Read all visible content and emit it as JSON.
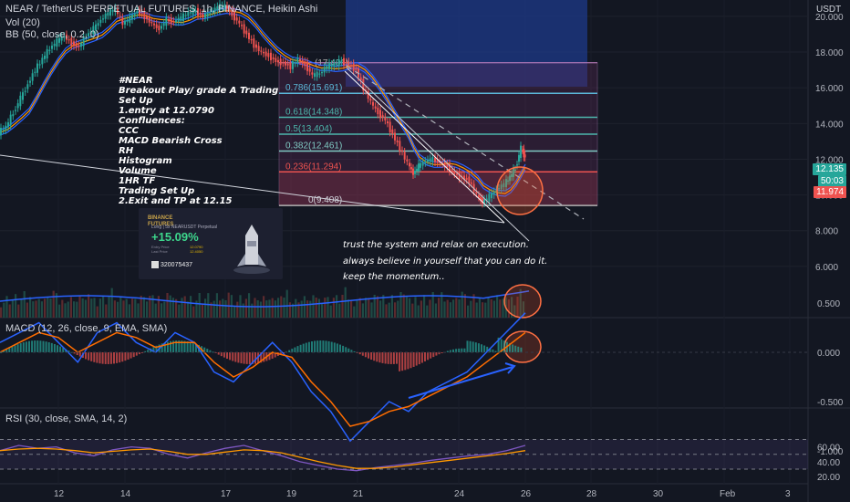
{
  "header": {
    "title": "NEAR / TetherUS PERPETUAL FUTURES, 1h, BINANCE, Heikin Ashi",
    "vol": "Vol (20)",
    "bb": "BB (50, close, 0.2, 0)",
    "currency": "USDT"
  },
  "price_badges": {
    "last": "12.135",
    "countdown": "50:03",
    "open": "11.974",
    "last_color": "#26a69a",
    "open_color": "#ef5350"
  },
  "note_lines": [
    "#NEAR",
    "Breakout Play/ grade A Trading",
    "Set Up",
    "1.entry at 12.0790",
    "Confluences:",
    "CCC",
    "MACD Bearish Cross",
    "RH",
    "Histogram",
    "Volume",
    "1HR TF",
    "Trading Set Up",
    "2.Exit and TP at 12.15"
  ],
  "comments": [
    "trust the system and relax on execution.",
    "always believe in yourself that you can do it.",
    "keep the momentum.."
  ],
  "card": {
    "brand_top": "BINANCE",
    "brand_bottom": "FUTURES",
    "pair": "Long | 5x   NEARUSDT Perpetual",
    "pct": "+15.09%",
    "row1": "Entry Price",
    "row2": "Last Price",
    "val1": "12.0790",
    "val2": "12.4050",
    "ref": "320075437"
  },
  "chart_data": [
    {
      "type": "candlestick",
      "title": "NEAR / TetherUS PERPETUAL FUTURES, 1h, BINANCE, Heikin Ashi",
      "y_ticks": [
        20.0,
        18.0,
        16.0,
        14.0,
        12.0,
        10.0,
        8.0,
        6.0
      ],
      "x_ticks": [
        "12",
        "14",
        "17",
        "19",
        "21",
        "24",
        "26",
        "28",
        "30",
        "Feb",
        "3"
      ],
      "fib_levels": [
        {
          "ratio": 0.786,
          "label": "0.786(15.691)",
          "price": 15.691,
          "color": "#5bb8d9"
        },
        {
          "ratio": 0.618,
          "label": "0.618(14.348)",
          "price": 14.348,
          "color": "#4db6ac"
        },
        {
          "ratio": 0.5,
          "label": "0.5(13.404)",
          "price": 13.404,
          "color": "#4db6ac"
        },
        {
          "ratio": 0.382,
          "label": "0.382(12.461)",
          "price": 12.461,
          "color": "#80cbc4"
        },
        {
          "ratio": 0.236,
          "label": "0.236(11.294)",
          "price": 11.294,
          "color": "#ef5350"
        },
        {
          "ratio": 0,
          "label": "0(9.408)",
          "price": 9.408,
          "color": "#b0b0b0"
        }
      ],
      "fib_top_label": "(17.401)",
      "price_path": [
        [
          0,
          13.5
        ],
        [
          8,
          13.8
        ],
        [
          16,
          14.6
        ],
        [
          24,
          15.4
        ],
        [
          32,
          16.2
        ],
        [
          40,
          17.0
        ],
        [
          48,
          17.6
        ],
        [
          56,
          18.2
        ],
        [
          64,
          18.6
        ],
        [
          72,
          18.9
        ],
        [
          80,
          18.5
        ],
        [
          88,
          18.3
        ],
        [
          96,
          18.9
        ],
        [
          104,
          19.3
        ],
        [
          112,
          19.8
        ],
        [
          120,
          20.2
        ],
        [
          128,
          20.4
        ],
        [
          136,
          19.6
        ],
        [
          144,
          19.9
        ],
        [
          152,
          20.3
        ],
        [
          160,
          20.0
        ],
        [
          168,
          19.6
        ],
        [
          176,
          19.3
        ],
        [
          184,
          19.8
        ],
        [
          192,
          19.7
        ],
        [
          200,
          19.9
        ],
        [
          208,
          20.2
        ],
        [
          216,
          20.3
        ],
        [
          224,
          20.0
        ],
        [
          232,
          20.2
        ],
        [
          240,
          20.5
        ],
        [
          248,
          20.6
        ],
        [
          256,
          20.1
        ],
        [
          264,
          19.6
        ],
        [
          272,
          19.0
        ],
        [
          280,
          18.4
        ],
        [
          288,
          18.0
        ],
        [
          296,
          17.8
        ],
        [
          304,
          17.5
        ],
        [
          312,
          17.4
        ],
        [
          320,
          17.2
        ],
        [
          328,
          17.6
        ],
        [
          336,
          17.3
        ],
        [
          344,
          16.7
        ],
        [
          352,
          16.8
        ],
        [
          360,
          17.2
        ],
        [
          368,
          17.3
        ],
        [
          376,
          17.5
        ],
        [
          384,
          17.3
        ],
        [
          392,
          17.0
        ],
        [
          400,
          16.0
        ],
        [
          408,
          15.2
        ],
        [
          416,
          14.6
        ],
        [
          424,
          14.2
        ],
        [
          432,
          13.4
        ],
        [
          440,
          12.6
        ],
        [
          448,
          11.8
        ],
        [
          454,
          11.2
        ],
        [
          460,
          11.6
        ],
        [
          468,
          11.9
        ],
        [
          476,
          12.0
        ],
        [
          484,
          11.8
        ],
        [
          492,
          11.6
        ],
        [
          500,
          11.2
        ],
        [
          508,
          11.0
        ],
        [
          516,
          10.8
        ],
        [
          524,
          10.0
        ],
        [
          530,
          9.6
        ],
        [
          538,
          9.9
        ],
        [
          546,
          10.3
        ],
        [
          554,
          10.6
        ],
        [
          560,
          11.0
        ],
        [
          566,
          11.5
        ],
        [
          572,
          12.6
        ],
        [
          576,
          12.1
        ]
      ],
      "volume_levels": [
        0.15,
        0.2,
        0.35,
        0.25,
        0.3,
        0.4,
        0.2,
        0.3,
        0.5,
        0.25,
        0.35,
        0.45,
        0.3,
        0.2,
        0.4,
        0.35,
        0.25,
        0.5,
        0.7,
        0.4
      ]
    },
    {
      "type": "line",
      "title": "MACD (12, 26, close, 9, EMA, SMA)",
      "y_ticks": [
        0.5,
        0.0,
        -0.5,
        -1.0
      ],
      "series": [
        {
          "color": "#2962ff",
          "values": [
            0.1,
            0.2,
            0.3,
            0.1,
            -0.1,
            0.2,
            0.3,
            0.1,
            0.0,
            0.2,
            0.1,
            -0.2,
            -0.3,
            -0.1,
            0.1,
            -0.1,
            -0.4,
            -0.6,
            -0.9,
            -0.7,
            -0.5,
            -0.6,
            -0.4,
            -0.3,
            -0.2,
            0.0,
            0.2,
            0.4
          ]
        },
        {
          "color": "#ff6d00",
          "values": [
            0.0,
            0.1,
            0.2,
            0.15,
            0.0,
            0.1,
            0.2,
            0.15,
            0.05,
            0.1,
            0.1,
            -0.1,
            -0.25,
            -0.15,
            0.0,
            -0.05,
            -0.3,
            -0.5,
            -0.75,
            -0.7,
            -0.6,
            -0.55,
            -0.45,
            -0.35,
            -0.25,
            -0.1,
            0.05,
            0.2
          ]
        }
      ]
    },
    {
      "type": "line",
      "title": "RSI (30, close, SMA, 14, 2)",
      "y_ticks": [
        60.0,
        40.0,
        20.0
      ],
      "bands": [
        70,
        50,
        30
      ],
      "series": [
        {
          "color": "#7e57c2",
          "values": [
            55,
            62,
            58,
            60,
            52,
            48,
            56,
            60,
            58,
            50,
            45,
            52,
            58,
            62,
            55,
            48,
            40,
            35,
            30,
            28,
            32,
            35,
            38,
            42,
            45,
            48,
            50,
            55,
            62
          ]
        },
        {
          "color": "#ff9800",
          "values": [
            55,
            57,
            58,
            57,
            55,
            52,
            54,
            56,
            57,
            54,
            50,
            50,
            53,
            56,
            55,
            52,
            46,
            40,
            35,
            31,
            31,
            33,
            36,
            39,
            42,
            45,
            48,
            51,
            55
          ]
        }
      ]
    }
  ]
}
